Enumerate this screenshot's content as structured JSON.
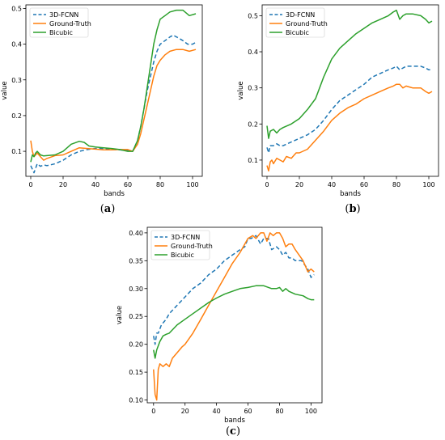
{
  "figure": {
    "panels": [
      {
        "caption": "(a)"
      },
      {
        "caption": "(b)"
      },
      {
        "caption": "(c)"
      }
    ]
  },
  "chart_data": [
    {
      "type": "line",
      "xlabel": "bands",
      "ylabel": "value",
      "xlim": [
        -3,
        106
      ],
      "ylim": [
        0.03,
        0.51
      ],
      "xticks": [
        0,
        20,
        40,
        60,
        80,
        100
      ],
      "yticks": [
        0.1,
        0.2,
        0.3,
        0.4,
        0.5
      ],
      "ytick_labels": [
        "0.1",
        "0.2",
        "0.3",
        "0.4",
        "0.5"
      ],
      "legend": "top-left",
      "grid": false,
      "series": [
        {
          "name": "3D-FCNN",
          "color": "#1f77b4",
          "dash": "dashed",
          "x": [
            0,
            2,
            4,
            6,
            8,
            10,
            15,
            20,
            25,
            30,
            35,
            40,
            45,
            50,
            55,
            60,
            63,
            66,
            68,
            70,
            72,
            74,
            76,
            78,
            80,
            83,
            86,
            88,
            91,
            94,
            97,
            100,
            102
          ],
          "y": [
            0.06,
            0.04,
            0.065,
            0.058,
            0.062,
            0.06,
            0.065,
            0.075,
            0.09,
            0.1,
            0.105,
            0.108,
            0.108,
            0.105,
            0.104,
            0.102,
            0.1,
            0.13,
            0.17,
            0.22,
            0.27,
            0.31,
            0.35,
            0.38,
            0.4,
            0.41,
            0.42,
            0.425,
            0.418,
            0.41,
            0.4,
            0.4,
            0.405
          ]
        },
        {
          "name": "Ground-Truth",
          "color": "#ff7f0e",
          "dash": "solid",
          "x": [
            0,
            1,
            2,
            3,
            4,
            6,
            8,
            10,
            15,
            20,
            25,
            30,
            35,
            40,
            45,
            50,
            55,
            60,
            63,
            66,
            68,
            70,
            72,
            74,
            76,
            78,
            80,
            83,
            86,
            90,
            94,
            98,
            102
          ],
          "y": [
            0.13,
            0.1,
            0.085,
            0.09,
            0.095,
            0.085,
            0.075,
            0.08,
            0.088,
            0.09,
            0.1,
            0.11,
            0.108,
            0.106,
            0.104,
            0.104,
            0.105,
            0.105,
            0.1,
            0.12,
            0.15,
            0.19,
            0.23,
            0.27,
            0.31,
            0.34,
            0.355,
            0.37,
            0.38,
            0.385,
            0.385,
            0.38,
            0.385
          ]
        },
        {
          "name": "Bicubic",
          "color": "#2ca02c",
          "dash": "solid",
          "x": [
            0,
            1,
            2,
            3,
            4,
            6,
            8,
            10,
            15,
            20,
            25,
            30,
            33,
            36,
            40,
            45,
            50,
            55,
            60,
            63,
            66,
            68,
            70,
            72,
            74,
            76,
            78,
            80,
            83,
            86,
            90,
            94,
            98,
            102
          ],
          "y": [
            0.07,
            0.09,
            0.085,
            0.095,
            0.1,
            0.09,
            0.087,
            0.088,
            0.09,
            0.1,
            0.12,
            0.128,
            0.125,
            0.115,
            0.112,
            0.11,
            0.108,
            0.105,
            0.1,
            0.1,
            0.13,
            0.17,
            0.22,
            0.28,
            0.34,
            0.4,
            0.44,
            0.47,
            0.48,
            0.49,
            0.495,
            0.495,
            0.48,
            0.485
          ]
        }
      ]
    },
    {
      "type": "line",
      "xlabel": "bands",
      "ylabel": "value",
      "xlim": [
        -3,
        106
      ],
      "ylim": [
        0.055,
        0.53
      ],
      "xticks": [
        0,
        20,
        40,
        60,
        80,
        100
      ],
      "yticks": [
        0.1,
        0.2,
        0.3,
        0.4,
        0.5
      ],
      "ytick_labels": [
        "0.1",
        "0.2",
        "0.3",
        "0.4",
        "0.5"
      ],
      "legend": "top-left",
      "grid": false,
      "series": [
        {
          "name": "3D-FCNN",
          "color": "#1f77b4",
          "dash": "dashed",
          "x": [
            0,
            1,
            2,
            4,
            6,
            8,
            10,
            15,
            20,
            25,
            30,
            35,
            40,
            45,
            50,
            55,
            60,
            65,
            70,
            75,
            78,
            80,
            82,
            84,
            86,
            90,
            95,
            98,
            100,
            102
          ],
          "y": [
            0.135,
            0.12,
            0.14,
            0.14,
            0.145,
            0.14,
            0.14,
            0.15,
            0.16,
            0.17,
            0.185,
            0.21,
            0.24,
            0.265,
            0.28,
            0.295,
            0.31,
            0.33,
            0.34,
            0.35,
            0.355,
            0.36,
            0.35,
            0.355,
            0.36,
            0.36,
            0.36,
            0.355,
            0.35,
            0.35
          ]
        },
        {
          "name": "Ground-Truth",
          "color": "#ff7f0e",
          "dash": "solid",
          "x": [
            0,
            1,
            2,
            3,
            4,
            6,
            8,
            10,
            12,
            15,
            18,
            20,
            25,
            30,
            35,
            40,
            45,
            50,
            55,
            60,
            65,
            70,
            75,
            78,
            80,
            82,
            84,
            86,
            90,
            95,
            98,
            100,
            102
          ],
          "y": [
            0.085,
            0.07,
            0.095,
            0.1,
            0.09,
            0.105,
            0.1,
            0.095,
            0.11,
            0.105,
            0.12,
            0.12,
            0.13,
            0.155,
            0.18,
            0.21,
            0.23,
            0.245,
            0.255,
            0.27,
            0.28,
            0.29,
            0.3,
            0.305,
            0.31,
            0.31,
            0.3,
            0.305,
            0.3,
            0.3,
            0.29,
            0.285,
            0.29
          ]
        },
        {
          "name": "Bicubic",
          "color": "#2ca02c",
          "dash": "solid",
          "x": [
            0,
            1,
            2,
            4,
            6,
            8,
            10,
            15,
            20,
            25,
            30,
            35,
            40,
            45,
            50,
            55,
            60,
            65,
            70,
            75,
            78,
            80,
            82,
            84,
            86,
            90,
            95,
            98,
            100,
            102
          ],
          "y": [
            0.195,
            0.16,
            0.18,
            0.185,
            0.175,
            0.185,
            0.19,
            0.2,
            0.215,
            0.24,
            0.27,
            0.33,
            0.38,
            0.41,
            0.43,
            0.45,
            0.465,
            0.48,
            0.49,
            0.5,
            0.51,
            0.515,
            0.49,
            0.5,
            0.505,
            0.505,
            0.5,
            0.49,
            0.48,
            0.485
          ]
        }
      ]
    },
    {
      "type": "line",
      "xlabel": "bands",
      "ylabel": "value",
      "xlim": [
        -4,
        107
      ],
      "ylim": [
        0.095,
        0.41
      ],
      "xticks": [
        0,
        20,
        40,
        60,
        80,
        100
      ],
      "yticks": [
        0.1,
        0.15,
        0.2,
        0.25,
        0.3,
        0.35,
        0.4
      ],
      "ytick_labels": [
        "0.10",
        "0.15",
        "0.20",
        "0.25",
        "0.30",
        "0.35",
        "0.40"
      ],
      "legend": "top-left",
      "grid": false,
      "series": [
        {
          "name": "3D-FCNN",
          "color": "#1f77b4",
          "dash": "dashed",
          "x": [
            0,
            1,
            2,
            3,
            5,
            8,
            10,
            15,
            20,
            25,
            30,
            35,
            40,
            45,
            50,
            55,
            58,
            60,
            62,
            65,
            68,
            70,
            73,
            75,
            78,
            80,
            82,
            84,
            86,
            88,
            90,
            94,
            98,
            100,
            102
          ],
          "y": [
            0.215,
            0.2,
            0.22,
            0.22,
            0.235,
            0.245,
            0.255,
            0.27,
            0.285,
            0.3,
            0.31,
            0.325,
            0.335,
            0.35,
            0.36,
            0.37,
            0.375,
            0.39,
            0.39,
            0.395,
            0.38,
            0.39,
            0.39,
            0.37,
            0.375,
            0.37,
            0.36,
            0.365,
            0.355,
            0.355,
            0.35,
            0.35,
            0.335,
            0.32,
            0.325
          ]
        },
        {
          "name": "Ground-Truth",
          "color": "#ff7f0e",
          "dash": "solid",
          "x": [
            0,
            1,
            2,
            3,
            4,
            6,
            8,
            10,
            12,
            15,
            18,
            20,
            25,
            30,
            35,
            40,
            45,
            50,
            55,
            60,
            63,
            65,
            68,
            70,
            72,
            74,
            76,
            78,
            80,
            82,
            84,
            86,
            88,
            90,
            95,
            98,
            100,
            102
          ],
          "y": [
            0.155,
            0.11,
            0.1,
            0.155,
            0.165,
            0.16,
            0.165,
            0.16,
            0.175,
            0.185,
            0.195,
            0.2,
            0.22,
            0.245,
            0.27,
            0.295,
            0.32,
            0.345,
            0.365,
            0.39,
            0.395,
            0.39,
            0.4,
            0.4,
            0.385,
            0.4,
            0.395,
            0.4,
            0.4,
            0.39,
            0.375,
            0.38,
            0.38,
            0.37,
            0.35,
            0.33,
            0.335,
            0.33
          ]
        },
        {
          "name": "Bicubic",
          "color": "#2ca02c",
          "dash": "solid",
          "x": [
            0,
            1,
            2,
            4,
            6,
            8,
            10,
            15,
            20,
            25,
            30,
            35,
            40,
            45,
            50,
            55,
            60,
            65,
            70,
            75,
            78,
            80,
            82,
            84,
            86,
            90,
            95,
            98,
            100,
            102
          ],
          "y": [
            0.19,
            0.175,
            0.19,
            0.205,
            0.215,
            0.218,
            0.22,
            0.235,
            0.245,
            0.255,
            0.265,
            0.275,
            0.283,
            0.29,
            0.295,
            0.3,
            0.302,
            0.305,
            0.305,
            0.3,
            0.3,
            0.302,
            0.295,
            0.3,
            0.295,
            0.29,
            0.287,
            0.282,
            0.28,
            0.28
          ]
        }
      ]
    }
  ]
}
